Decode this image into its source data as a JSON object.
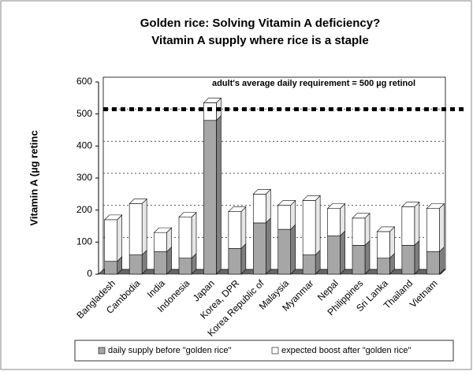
{
  "chart_data": {
    "type": "stacked-bar-3d",
    "title": [
      "Golden rice: Solving Vitamin A deficiency?",
      "Vitamin A supply where rice is a staple"
    ],
    "y_label": "Vitamin A (µg retinc",
    "categories": [
      "Bangladesh",
      "Cambodia",
      "India",
      "Indonesia",
      "Japan",
      "Korea, DPR",
      "Korea Republic of",
      "Malaysia",
      "Myanmar",
      "Nepal",
      "Philippines",
      "Sri Lanka",
      "Thailand",
      "Vietnam"
    ],
    "series": [
      {
        "name": "daily supply before \"golden rice\"",
        "color": "#a6a6a6",
        "values": [
          40,
          60,
          70,
          50,
          480,
          80,
          160,
          140,
          60,
          120,
          90,
          50,
          90,
          70
        ]
      },
      {
        "name": "expected boost after \"golden rice\"",
        "color": "#ffffff",
        "values": [
          130,
          160,
          60,
          128,
          55,
          115,
          90,
          75,
          170,
          85,
          85,
          83,
          120,
          135
        ]
      }
    ],
    "reference_line": {
      "value": 500,
      "label": "adult's average daily requirement = 500 µg retinol"
    },
    "ylim": [
      0,
      600
    ],
    "yticks": [
      0,
      100,
      200,
      300,
      400,
      500,
      600
    ],
    "grid": true
  }
}
